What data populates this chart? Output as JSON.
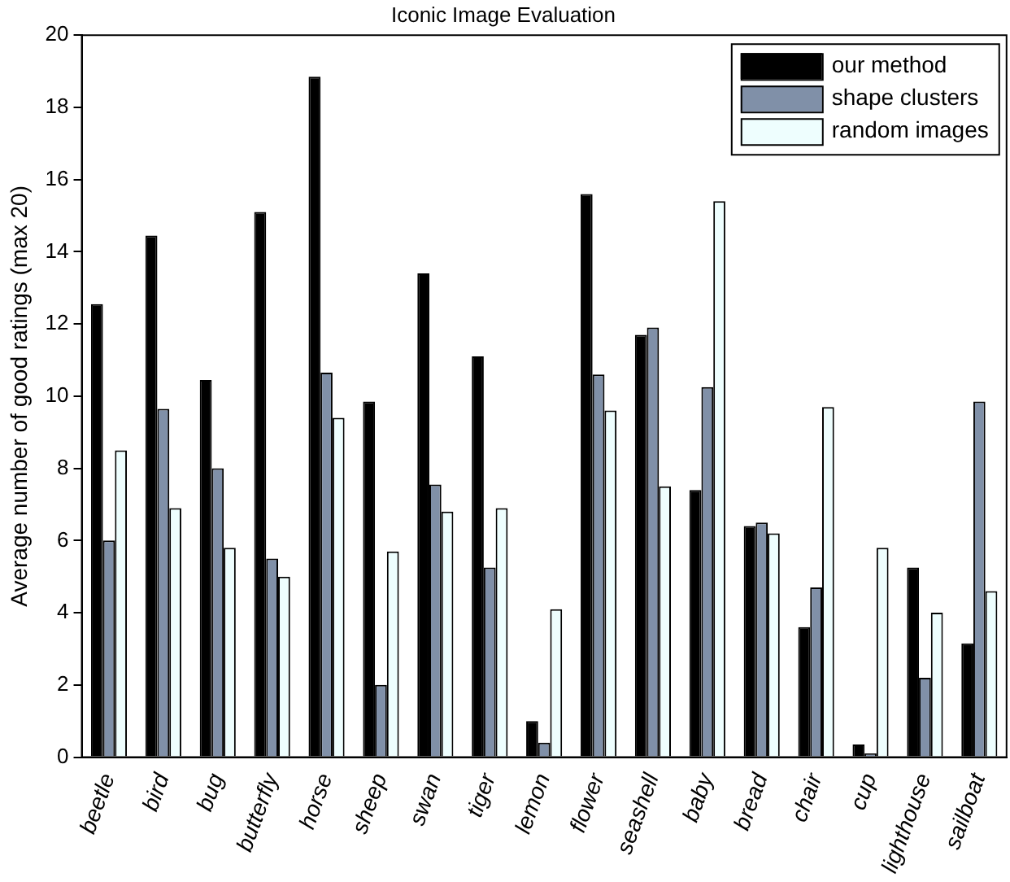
{
  "chart_data": {
    "type": "bar",
    "title": "Iconic Image Evaluation",
    "ylabel": "Average number of good ratings (max 20)",
    "categories": [
      "beetle",
      "bird",
      "bug",
      "butterfly",
      "horse",
      "sheep",
      "swan",
      "tiger",
      "lemon",
      "flower",
      "seashell",
      "baby",
      "bread",
      "chair",
      "cup",
      "lighthouse",
      "sailboat"
    ],
    "series": [
      {
        "name": "our method",
        "color": "#000000",
        "values": [
          12.55,
          14.45,
          10.45,
          15.1,
          18.85,
          9.85,
          13.4,
          11.1,
          1.0,
          15.6,
          11.7,
          7.4,
          6.4,
          3.6,
          0.35,
          5.25,
          3.15
        ]
      },
      {
        "name": "shape clusters",
        "color": "#8090a8",
        "values": [
          6.0,
          9.65,
          8.0,
          5.5,
          10.65,
          2.0,
          7.55,
          5.25,
          0.4,
          10.6,
          11.9,
          10.25,
          6.5,
          4.7,
          0.1,
          2.2,
          9.85
        ]
      },
      {
        "name": "random images",
        "color": "#eefefe",
        "values": [
          8.5,
          6.9,
          5.8,
          5.0,
          9.4,
          5.7,
          6.8,
          6.9,
          4.1,
          9.6,
          7.5,
          15.4,
          6.2,
          9.7,
          5.8,
          4.0,
          4.6
        ]
      }
    ],
    "ylim": [
      0,
      20
    ],
    "yticks": [
      0,
      2,
      4,
      6,
      8,
      10,
      12,
      14,
      16,
      18,
      20
    ],
    "grid": false,
    "legend": "top right"
  }
}
